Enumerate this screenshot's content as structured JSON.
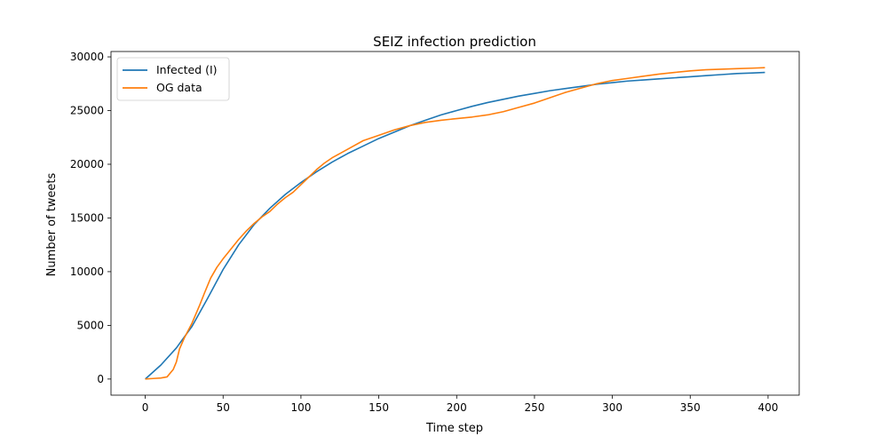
{
  "chart_data": {
    "type": "line",
    "title": "SEIZ infection prediction",
    "xlabel": "Time step",
    "ylabel": "Number of tweets",
    "xlim": [
      -22,
      420
    ],
    "ylim": [
      -1500,
      30500
    ],
    "xticks": [
      0,
      50,
      100,
      150,
      200,
      250,
      300,
      350,
      400
    ],
    "yticks": [
      0,
      5000,
      10000,
      15000,
      20000,
      25000,
      30000
    ],
    "grid": false,
    "legend_position": "top-left",
    "series": [
      {
        "name": "Infected (I)",
        "color": "#1f77b4",
        "points": [
          [
            0,
            0
          ],
          [
            10,
            1300
          ],
          [
            20,
            2900
          ],
          [
            30,
            4900
          ],
          [
            40,
            7500
          ],
          [
            50,
            10200
          ],
          [
            60,
            12500
          ],
          [
            70,
            14400
          ],
          [
            80,
            15900
          ],
          [
            90,
            17200
          ],
          [
            100,
            18300
          ],
          [
            110,
            19300
          ],
          [
            120,
            20200
          ],
          [
            130,
            21000
          ],
          [
            140,
            21700
          ],
          [
            150,
            22400
          ],
          [
            160,
            23000
          ],
          [
            170,
            23600
          ],
          [
            180,
            24100
          ],
          [
            190,
            24600
          ],
          [
            200,
            25000
          ],
          [
            210,
            25400
          ],
          [
            220,
            25750
          ],
          [
            230,
            26050
          ],
          [
            240,
            26350
          ],
          [
            250,
            26600
          ],
          [
            260,
            26850
          ],
          [
            270,
            27050
          ],
          [
            280,
            27250
          ],
          [
            290,
            27450
          ],
          [
            300,
            27600
          ],
          [
            310,
            27750
          ],
          [
            320,
            27850
          ],
          [
            330,
            27950
          ],
          [
            340,
            28050
          ],
          [
            350,
            28150
          ],
          [
            360,
            28250
          ],
          [
            370,
            28350
          ],
          [
            380,
            28450
          ],
          [
            390,
            28500
          ],
          [
            398,
            28550
          ]
        ]
      },
      {
        "name": "OG data",
        "color": "#ff7f0e",
        "points": [
          [
            0,
            0
          ],
          [
            5,
            50
          ],
          [
            10,
            100
          ],
          [
            14,
            200
          ],
          [
            18,
            900
          ],
          [
            20,
            1600
          ],
          [
            22,
            2800
          ],
          [
            25,
            3800
          ],
          [
            30,
            5200
          ],
          [
            35,
            6900
          ],
          [
            38,
            8000
          ],
          [
            42,
            9400
          ],
          [
            46,
            10400
          ],
          [
            50,
            11200
          ],
          [
            55,
            12100
          ],
          [
            60,
            13000
          ],
          [
            65,
            13800
          ],
          [
            70,
            14500
          ],
          [
            75,
            15100
          ],
          [
            80,
            15600
          ],
          [
            85,
            16300
          ],
          [
            90,
            16900
          ],
          [
            95,
            17400
          ],
          [
            100,
            18100
          ],
          [
            105,
            18800
          ],
          [
            110,
            19500
          ],
          [
            115,
            20100
          ],
          [
            120,
            20600
          ],
          [
            130,
            21400
          ],
          [
            140,
            22200
          ],
          [
            150,
            22700
          ],
          [
            160,
            23200
          ],
          [
            170,
            23600
          ],
          [
            180,
            23900
          ],
          [
            190,
            24100
          ],
          [
            200,
            24250
          ],
          [
            210,
            24400
          ],
          [
            220,
            24600
          ],
          [
            230,
            24900
          ],
          [
            240,
            25300
          ],
          [
            250,
            25700
          ],
          [
            260,
            26200
          ],
          [
            270,
            26700
          ],
          [
            280,
            27100
          ],
          [
            290,
            27500
          ],
          [
            300,
            27800
          ],
          [
            310,
            28000
          ],
          [
            320,
            28200
          ],
          [
            330,
            28400
          ],
          [
            340,
            28550
          ],
          [
            350,
            28700
          ],
          [
            360,
            28800
          ],
          [
            370,
            28850
          ],
          [
            380,
            28900
          ],
          [
            390,
            28950
          ],
          [
            398,
            29000
          ]
        ]
      }
    ]
  }
}
